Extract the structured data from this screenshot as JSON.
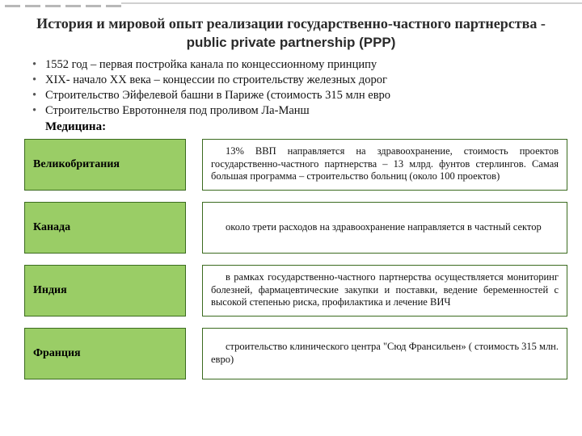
{
  "colors": {
    "country_bg": "#9acd66",
    "border": "#3b6b1f",
    "strip": "#b8b8b8"
  },
  "title_ru": "История и мировой опыт реализации государственно-частного партнерства - ",
  "title_en": "public private partnership (PPP)",
  "bullets": [
    "1552 год – первая постройка канала по концессионному принципу",
    "XIX- начало XX века – концессии по строительству железных дорог",
    "Строительство Эйфелевой башни в Париже (стоимость 315 млн евро",
    "Строительство Евротоннеля под проливом Ла-Манш"
  ],
  "med_heading": "Медицина:",
  "rows": [
    {
      "country": "Великобритания",
      "desc": "13% ВВП направляется на здравоохранение, стоимость проектов государственно-частного партнерства – 13 млрд. фунтов стерлингов. Самая большая программа – строительство больниц (около 100 проектов)"
    },
    {
      "country": "Канада",
      "desc": "около трети расходов на здравоохранение направляется в частный сектор"
    },
    {
      "country": "Индия",
      "desc": "в рамках государственно-частного партнерства осуществляется мониторинг болезней, фармацевтические закупки и поставки, ведение беременностей с высокой степенью риска, профилактика и лечение ВИЧ"
    },
    {
      "country": "Франция",
      "desc": "строительство клинического центра \"Сюд Франсильен» ( стоимость 315 млн. евро)"
    }
  ]
}
